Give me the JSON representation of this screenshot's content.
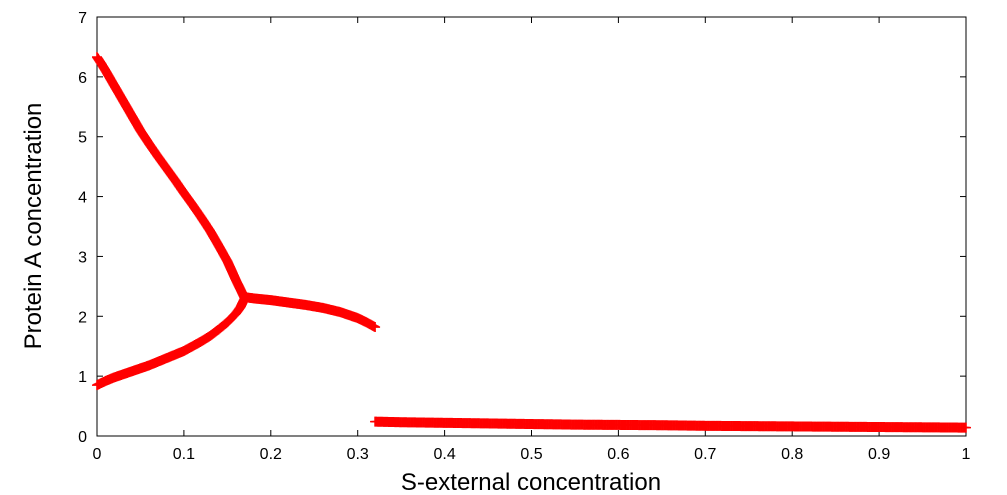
{
  "chart_data": {
    "type": "scatter",
    "xlabel": "S-external concentration",
    "ylabel": "Protein A concentration",
    "xlim": [
      0,
      1
    ],
    "ylim": [
      0,
      7
    ],
    "x_ticks": [
      0,
      0.1,
      0.2,
      0.3,
      0.4,
      0.5,
      0.6,
      0.7,
      0.8,
      0.9,
      1
    ],
    "x_tick_labels": [
      "0",
      "0.1",
      "0.2",
      "0.3",
      "0.4",
      "0.5",
      "0.6",
      "0.7",
      "0.8",
      "0.9",
      "1"
    ],
    "y_ticks": [
      0,
      1,
      2,
      3,
      4,
      5,
      6,
      7
    ],
    "y_tick_labels": [
      "0",
      "1",
      "2",
      "3",
      "4",
      "5",
      "6",
      "7"
    ],
    "grid": false,
    "marker": "plus",
    "color": "#ff0000",
    "series": [
      {
        "x": [
          0.0,
          0.005,
          0.01,
          0.02,
          0.03,
          0.04,
          0.05,
          0.06,
          0.07,
          0.08,
          0.09,
          0.1,
          0.11,
          0.12,
          0.13,
          0.14,
          0.15,
          0.16,
          0.165,
          0.17
        ],
        "y": [
          6.33,
          6.22,
          6.1,
          5.85,
          5.6,
          5.35,
          5.1,
          4.88,
          4.67,
          4.47,
          4.27,
          4.06,
          3.86,
          3.65,
          3.43,
          3.18,
          2.92,
          2.6,
          2.45,
          2.3
        ]
      },
      {
        "x": [
          0.0,
          0.01,
          0.02,
          0.04,
          0.06,
          0.08,
          0.1,
          0.12,
          0.13,
          0.14,
          0.15,
          0.16,
          0.165,
          0.17
        ],
        "y": [
          0.85,
          0.92,
          0.98,
          1.08,
          1.18,
          1.3,
          1.42,
          1.58,
          1.67,
          1.78,
          1.9,
          2.05,
          2.15,
          2.3
        ]
      },
      {
        "x": [
          0.17,
          0.18,
          0.2,
          0.22,
          0.24,
          0.26,
          0.28,
          0.3,
          0.31,
          0.32
        ],
        "y": [
          2.32,
          2.3,
          2.27,
          2.23,
          2.19,
          2.14,
          2.07,
          1.97,
          1.9,
          1.82
        ]
      },
      {
        "x": [
          0.32,
          0.35,
          0.4,
          0.45,
          0.5,
          0.55,
          0.6,
          0.65,
          0.7,
          0.75,
          0.8,
          0.85,
          0.9,
          0.95,
          1.0
        ],
        "y": [
          0.24,
          0.23,
          0.22,
          0.21,
          0.2,
          0.19,
          0.185,
          0.18,
          0.17,
          0.165,
          0.16,
          0.155,
          0.15,
          0.145,
          0.14
        ]
      }
    ]
  }
}
